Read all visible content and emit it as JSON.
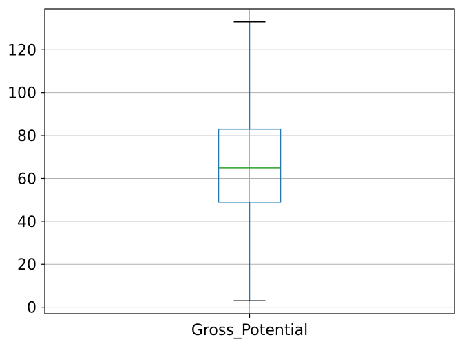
{
  "chart_data": {
    "type": "box",
    "categories": [
      "Gross_Potential"
    ],
    "boxes": [
      {
        "category": "Gross_Potential",
        "whisker_low": 3,
        "q1": 49,
        "median": 65,
        "q3": 83,
        "whisker_high": 133
      }
    ],
    "yticks": [
      0,
      20,
      40,
      60,
      80,
      100,
      120
    ],
    "ylim": [
      -3,
      139
    ],
    "grid": true,
    "colors": {
      "box": "#1f77b4",
      "median": "#2ca02c",
      "cap": "#000000",
      "grid": "#b0b0b0",
      "frame": "#000000"
    }
  }
}
